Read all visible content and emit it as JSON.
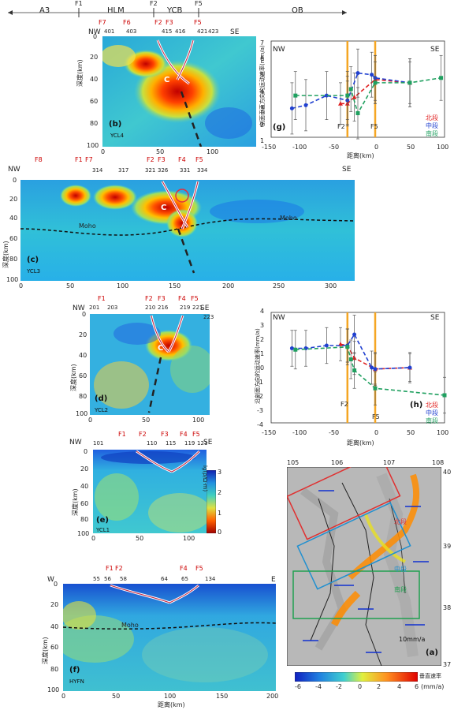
{
  "top_bar": {
    "zones": [
      "A3",
      "HLM",
      "YCB",
      "OB"
    ],
    "faults": [
      "F1",
      "F2",
      "F5"
    ]
  },
  "section_b": {
    "nw": "NW",
    "se": "SE",
    "faults": [
      "F7",
      "F6",
      "F2",
      "F3",
      "F5"
    ],
    "stations": [
      "401",
      "403",
      "415",
      "416",
      "421",
      "423"
    ],
    "ylabel": "深度(km)",
    "letter": "(b)",
    "name": "YCL4",
    "c_label": "C",
    "yticks": [
      "0",
      "20",
      "40",
      "60",
      "80",
      "100"
    ],
    "xticks": [
      "0",
      "50",
      "100"
    ]
  },
  "section_c": {
    "nw": "NW",
    "se": "SE",
    "faults": [
      "F8",
      "F1",
      "F7",
      "F2",
      "F3",
      "F4",
      "F5"
    ],
    "stations": [
      "314",
      "317",
      "321",
      "326",
      "331",
      "334"
    ],
    "moho": [
      "Moho",
      "Moho"
    ],
    "ylabel": "深度(km)",
    "letter": "(c)",
    "name": "YCL3",
    "c_label": "C",
    "yticks": [
      "0",
      "20",
      "40",
      "60",
      "80",
      "100"
    ],
    "xticks": [
      "0",
      "50",
      "100",
      "150",
      "200",
      "250",
      "300"
    ]
  },
  "section_d": {
    "nw": "NW",
    "se": "SE",
    "faults": [
      "F1",
      "F2",
      "F3",
      "F4",
      "F5"
    ],
    "stations": [
      "201",
      "203",
      "210",
      "216",
      "219",
      "221",
      "223"
    ],
    "ylabel": "深度(km)",
    "letter": "(d)",
    "name": "YCL2",
    "c_label": "C",
    "yticks": [
      "0",
      "20",
      "40",
      "60",
      "80",
      "100"
    ],
    "xticks": [
      "0",
      "50",
      "100"
    ]
  },
  "section_e": {
    "nw": "NW",
    "se": "SE",
    "faults": [
      "F1",
      "F2",
      "F3",
      "F4",
      "F5"
    ],
    "stations": [
      "101",
      "110",
      "115",
      "119",
      "121"
    ],
    "ylabel": "深度(km)",
    "letter": "(e)",
    "name": "YCL1",
    "yticks": [
      "0",
      "20",
      "40",
      "60",
      "80",
      "100"
    ],
    "xticks": [
      "0",
      "50",
      "100"
    ],
    "colorbar_label": "lg(ρ/Ω·m)",
    "colorbar_ticks": [
      "3",
      "2",
      "1",
      "0"
    ]
  },
  "section_f": {
    "nw": "W",
    "se": "E",
    "faults": [
      "F1",
      "F2",
      "F4",
      "F5"
    ],
    "stations": [
      "55",
      "56",
      "58",
      "64",
      "65",
      "134"
    ],
    "moho": "Moho",
    "ylabel": "深度(km)",
    "letter": "(f)",
    "name": "HYFN",
    "xlabel": "距离(km)",
    "yticks": [
      "0",
      "20",
      "40",
      "60",
      "80",
      "100"
    ],
    "xticks": [
      "0",
      "50",
      "100",
      "150",
      "200"
    ]
  },
  "chart_g": {
    "nw": "NW",
    "se": "SE",
    "letter": "(g)",
    "ylabel": "剖面垂直方向的运动速率(mm/a)",
    "xlabel": "距离(km)",
    "faults": [
      "F2",
      "F5"
    ],
    "legend": [
      "北段",
      "中段",
      "南段"
    ],
    "yticks": [
      "1",
      "2",
      "3",
      "4",
      "5",
      "6",
      "7"
    ],
    "xticks": [
      "-150",
      "-100",
      "-50",
      "0",
      "50",
      "100"
    ]
  },
  "chart_h": {
    "nw": "NW",
    "se": "SE",
    "letter": "(h)",
    "ylabel": "沿剖面方向的运动速率(mm/a)",
    "xlabel": "距离(km)",
    "faults": [
      "F2",
      "F5"
    ],
    "legend": [
      "北段",
      "中段",
      "南段"
    ],
    "yticks": [
      "-4",
      "-3",
      "-2",
      "-1",
      "0",
      "1",
      "2",
      "3",
      "4"
    ],
    "xticks": [
      "-150",
      "-100",
      "-50",
      "0",
      "50",
      "100"
    ]
  },
  "map_a": {
    "lon_ticks": [
      "105",
      "106",
      "107",
      "108"
    ],
    "lat_ticks": [
      "40",
      "39",
      "38",
      "37"
    ],
    "boxes": [
      "北段",
      "中段",
      "南段"
    ],
    "scale": "10mm/a",
    "letter": "(a)"
  },
  "velocity_bar": {
    "ticks": [
      "-6",
      "-4",
      "-2",
      "0",
      "2",
      "4",
      "6"
    ],
    "unit": "(mm/a)",
    "label": "垂直速率"
  },
  "chart_data": [
    {
      "type": "line",
      "letter": "(g)",
      "xlim": [
        -150,
        100
      ],
      "ylim": [
        1,
        7
      ],
      "xlabel": "距离(km)",
      "ylabel": "剖面垂直方向的运动速率(mm/a)",
      "series": [
        {
          "name": "北段",
          "color": "#e02020",
          "marker": "triangle",
          "x": [
            -50,
            -40,
            -30,
            0,
            50
          ],
          "y": [
            3.1,
            3.1,
            3.5,
            4.6,
            4.4
          ],
          "err": [
            1.3,
            1.4,
            1.5,
            1.5,
            1.5
          ]
        },
        {
          "name": "中段",
          "color": "#2040d0",
          "marker": "circle",
          "x": [
            -120,
            -100,
            -70,
            -40,
            -25,
            -5,
            0,
            50
          ],
          "y": [
            2.8,
            3.0,
            3.6,
            3.3,
            5.0,
            4.9,
            4.7,
            4.4
          ],
          "err": [
            1.6,
            1.6,
            1.5,
            1.5,
            1.5,
            1.4,
            1.4,
            1.5
          ]
        },
        {
          "name": "南段",
          "color": "#20a060",
          "marker": "square",
          "x": [
            -115,
            -40,
            -35,
            -25,
            0,
            50,
            95
          ],
          "y": [
            3.6,
            3.6,
            4.0,
            2.5,
            4.4,
            4.4,
            4.7
          ],
          "err": [
            1.5,
            1.5,
            1.4,
            1.6,
            1.3,
            1.3,
            1.4
          ]
        }
      ]
    },
    {
      "type": "line",
      "letter": "(h)",
      "xlim": [
        -150,
        100
      ],
      "ylim": [
        -4,
        4
      ],
      "xlabel": "距离(km)",
      "ylabel": "沿剖面方向的运动速率(mm/a)",
      "series": [
        {
          "name": "北段",
          "color": "#e02020",
          "marker": "triangle",
          "x": [
            -50,
            -40,
            -30,
            0,
            50
          ],
          "y": [
            1.7,
            1.6,
            0.7,
            -0.1,
            0.0
          ],
          "err": [
            1.2,
            1.2,
            1.2,
            1.1,
            1.0
          ]
        },
        {
          "name": "中段",
          "color": "#2040d0",
          "marker": "circle",
          "x": [
            -120,
            -100,
            -70,
            -40,
            -30,
            -5,
            0,
            50
          ],
          "y": [
            1.4,
            1.4,
            1.6,
            1.6,
            2.4,
            0.0,
            -0.1,
            0.0
          ],
          "err": [
            1.3,
            1.3,
            1.3,
            1.2,
            1.4,
            1.2,
            1.2,
            1.1
          ]
        },
        {
          "name": "南段",
          "color": "#20a060",
          "marker": "square",
          "x": [
            -115,
            -40,
            -35,
            -30,
            0,
            100
          ],
          "y": [
            1.3,
            1.5,
            0.6,
            -0.2,
            -1.5,
            -2.0
          ],
          "err": [
            1.4,
            1.3,
            1.4,
            1.3,
            1.2,
            1.3
          ]
        }
      ]
    }
  ]
}
